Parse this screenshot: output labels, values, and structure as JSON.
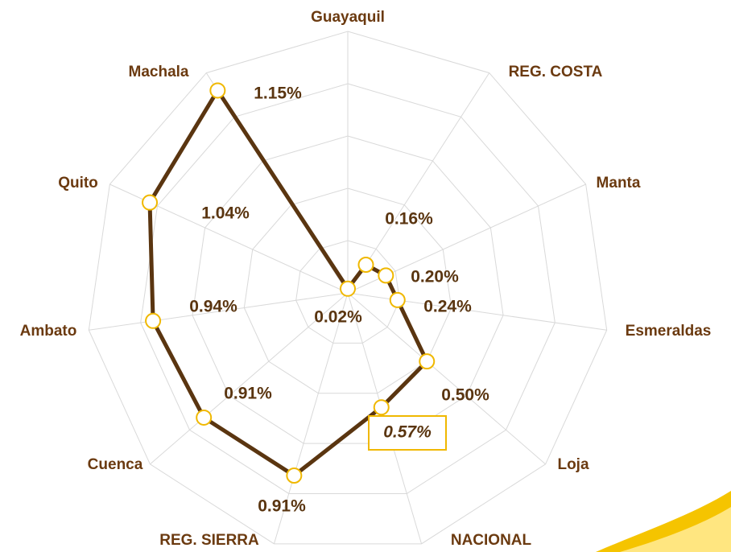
{
  "chart_data": {
    "type": "radar",
    "categories": [
      "Guayaquil",
      "REG. COSTA",
      "Manta",
      "Esmeraldas",
      "Loja",
      "NACIONAL",
      "REG. SIERRA",
      "Cuenca",
      "Ambato",
      "Quito",
      "Machala"
    ],
    "values": [
      0.02,
      0.16,
      0.2,
      0.24,
      0.5,
      0.57,
      0.91,
      0.91,
      0.94,
      1.04,
      1.15
    ],
    "value_labels": [
      "0.02%",
      "0.16%",
      "0.20%",
      "0.24%",
      "0.50%",
      "0.57%",
      "0.91%",
      "0.91%",
      "0.94%",
      "1.04%",
      "1.15%"
    ],
    "color": "#5a3510",
    "marker_color": "#f0b800",
    "ylim": [
      0,
      1.25
    ],
    "yticks": [
      0,
      0.25,
      0.5,
      0.75,
      1,
      1.25
    ],
    "grid": true,
    "highlight_index": 5
  }
}
